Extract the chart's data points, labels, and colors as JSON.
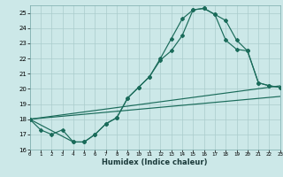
{
  "bg_color": "#cce8e8",
  "grid_color": "#aacccc",
  "line_color": "#1a6b5a",
  "xlim": [
    0,
    23
  ],
  "ylim": [
    16,
    25.5
  ],
  "xtick_vals": [
    0,
    1,
    2,
    3,
    4,
    5,
    6,
    7,
    8,
    9,
    10,
    11,
    12,
    13,
    14,
    15,
    16,
    17,
    18,
    19,
    20,
    21,
    22,
    23
  ],
  "ytick_vals": [
    16,
    17,
    18,
    19,
    20,
    21,
    22,
    23,
    24,
    25
  ],
  "xlabel": "Humidex (Indice chaleur)",
  "curve_main_x": [
    0,
    1,
    2,
    3,
    4,
    5,
    6,
    7,
    8,
    9,
    10,
    11,
    12,
    13,
    14,
    15,
    16,
    17,
    18,
    19,
    20,
    21,
    22,
    23
  ],
  "curve_main_y": [
    18.0,
    17.3,
    17.0,
    17.3,
    16.5,
    16.5,
    17.0,
    17.7,
    18.1,
    19.4,
    20.1,
    20.8,
    22.0,
    23.3,
    24.6,
    25.2,
    25.3,
    24.9,
    24.5,
    23.2,
    22.5,
    20.4,
    20.2,
    20.1
  ],
  "curve2_x": [
    0,
    4,
    5,
    6,
    7,
    8,
    9,
    10,
    11,
    12,
    13,
    14,
    15,
    16,
    17,
    18,
    19,
    20,
    21,
    22,
    23
  ],
  "curve2_y": [
    18.0,
    16.5,
    16.5,
    17.0,
    17.7,
    18.1,
    19.4,
    20.1,
    20.8,
    21.9,
    22.5,
    23.5,
    25.2,
    25.3,
    24.9,
    23.2,
    22.6,
    22.5,
    20.4,
    20.2,
    20.1
  ],
  "ref_line1_x": [
    0,
    23
  ],
  "ref_line1_y": [
    18.0,
    19.5
  ],
  "ref_line2_x": [
    0,
    23
  ],
  "ref_line2_y": [
    18.0,
    20.2
  ]
}
